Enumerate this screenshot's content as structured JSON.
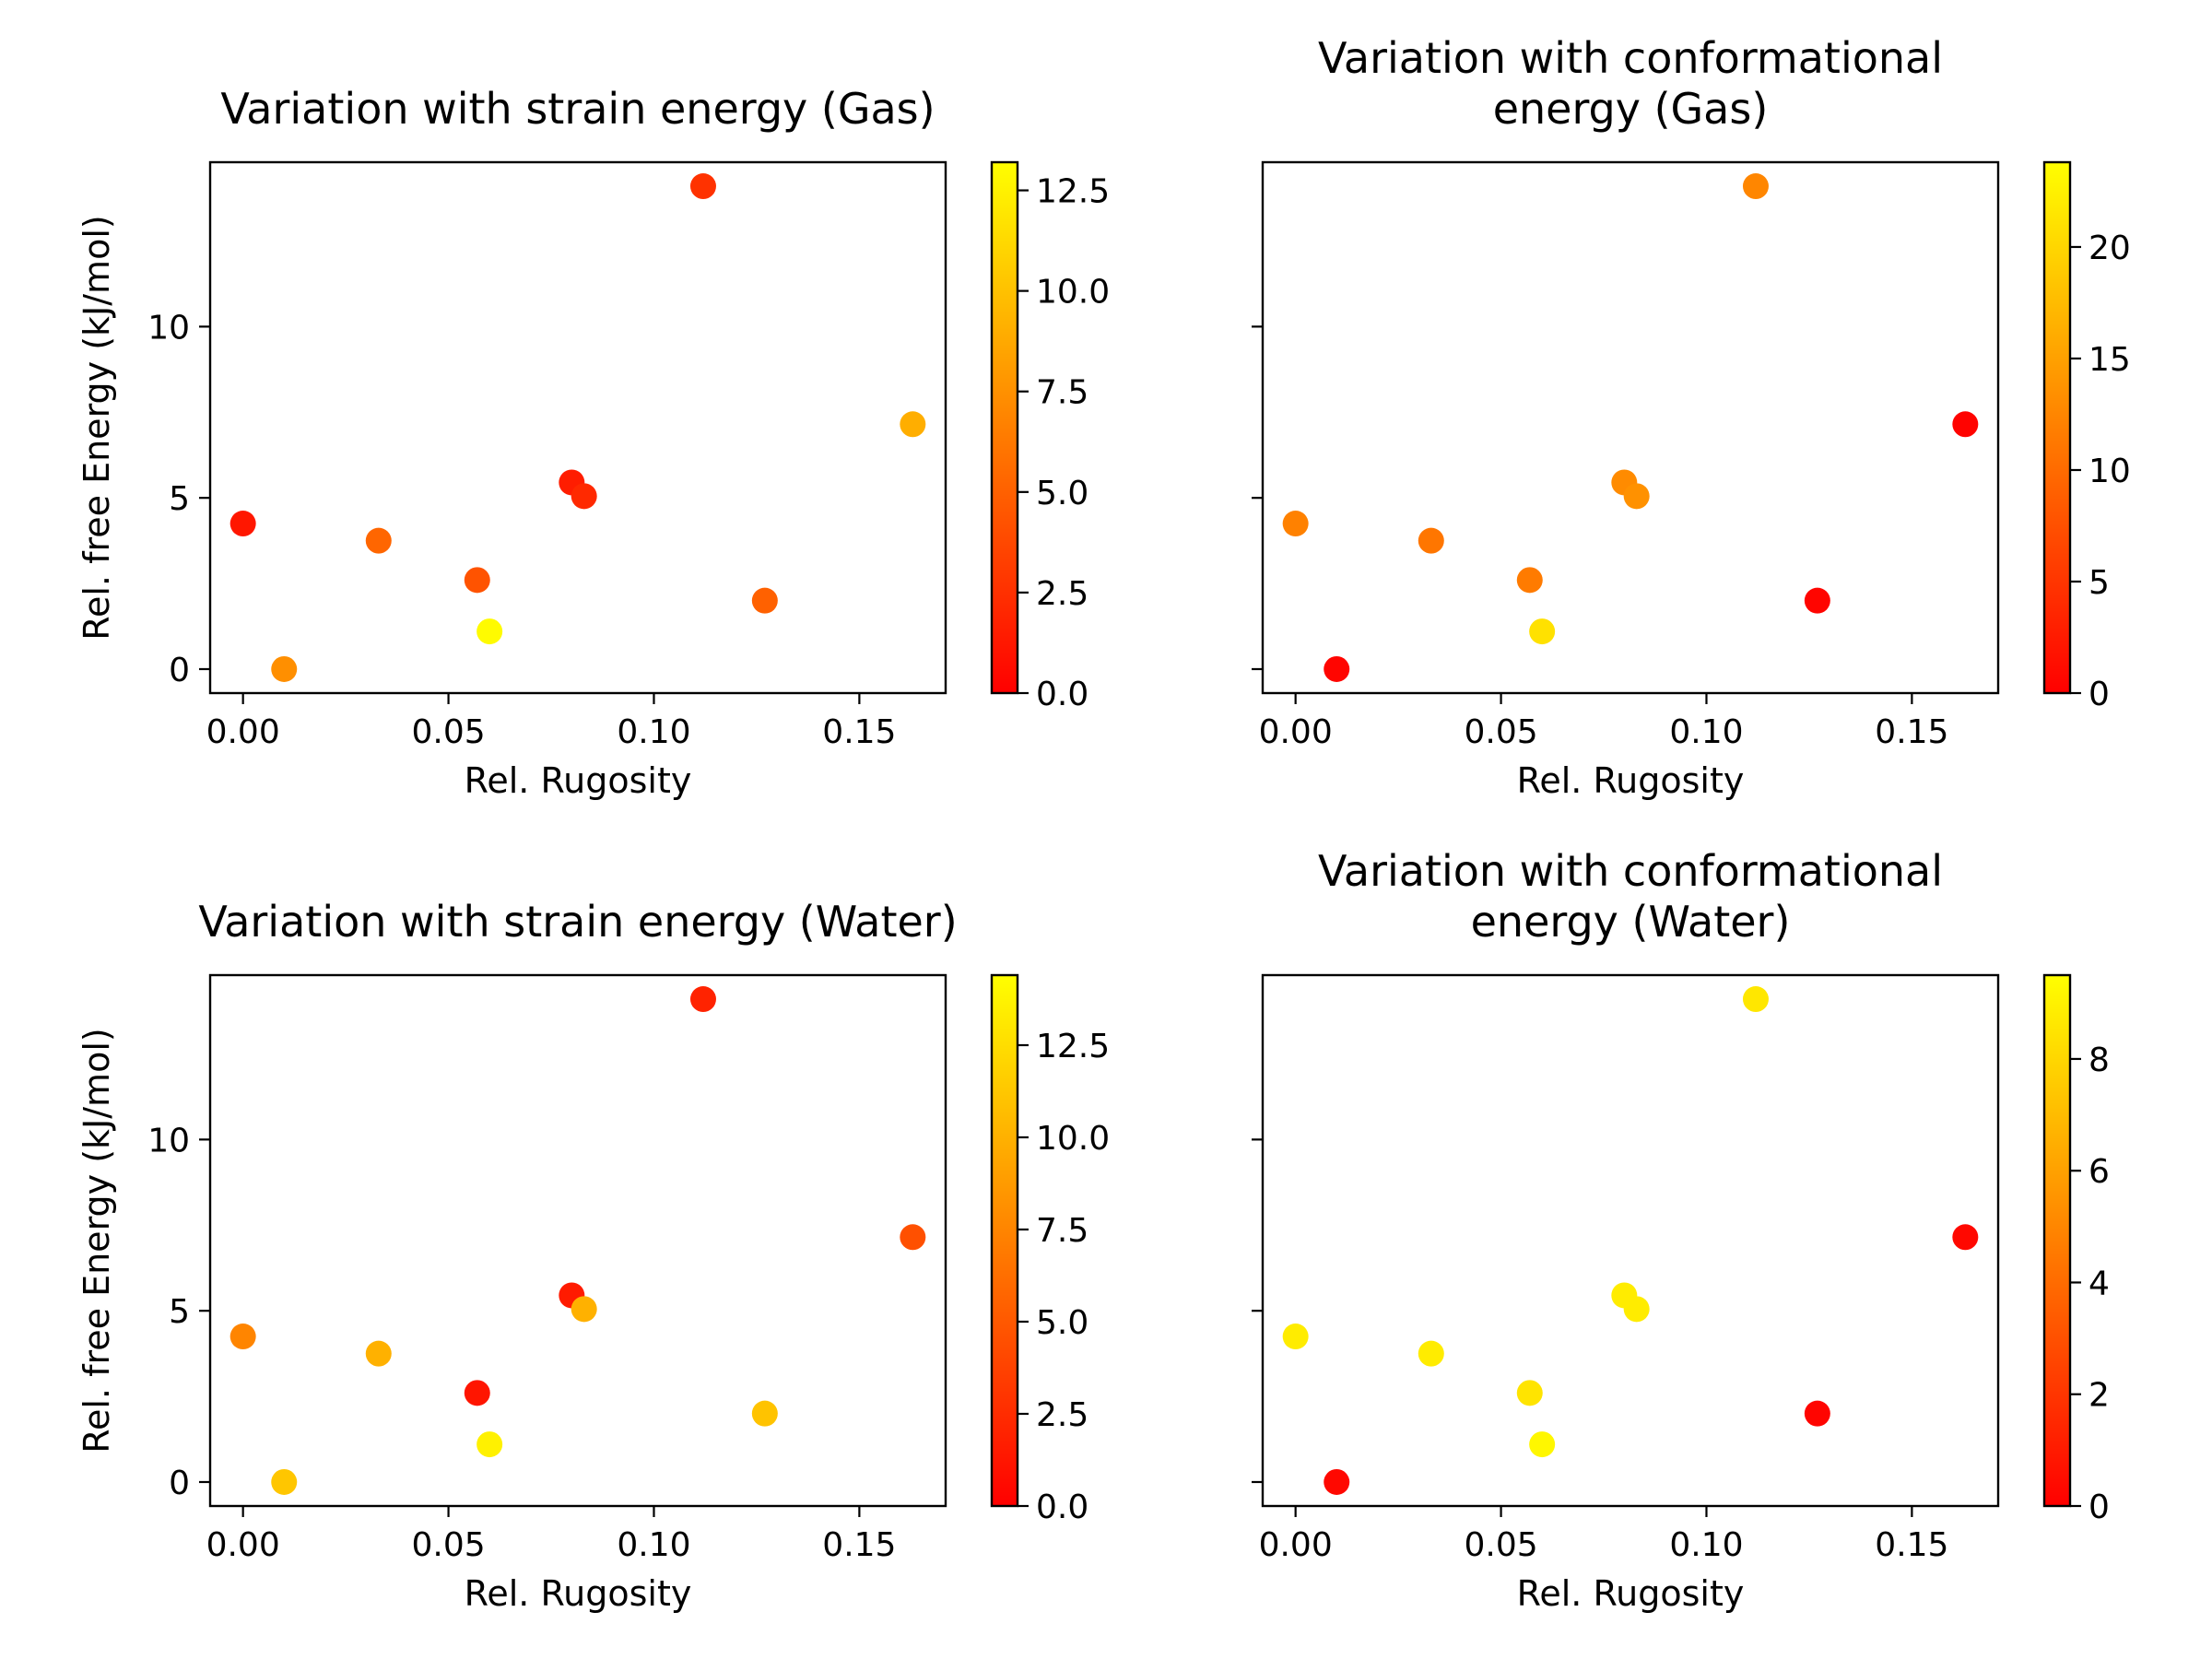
{
  "colors": {
    "colormap": "autumn",
    "low": "#ff0000",
    "high": "#ffff00",
    "frame": "#000000"
  },
  "chart_data": [
    {
      "type": "scatter",
      "title": [
        "Variation with strain energy (Gas)"
      ],
      "xlabel": "Rel. Rugosity",
      "ylabel": "Rel. free Energy (kJ/mol)",
      "x": [
        0.0,
        0.01,
        0.033,
        0.057,
        0.06,
        0.08,
        0.083,
        0.112,
        0.127,
        0.163
      ],
      "y": [
        4.25,
        0.0,
        3.75,
        2.6,
        1.1,
        5.45,
        5.05,
        14.1,
        2.0,
        7.15
      ],
      "c": [
        1.2,
        7.4,
        5.3,
        4.3,
        13.0,
        1.5,
        2.1,
        2.6,
        5.0,
        9.0
      ],
      "xlim": [
        -0.008,
        0.171
      ],
      "ylim": [
        -0.7,
        14.8
      ],
      "xticks": [
        0.0,
        0.05,
        0.1,
        0.15
      ],
      "xtick_labels": [
        "0.00",
        "0.05",
        "0.10",
        "0.15"
      ],
      "yticks": [
        0,
        5,
        10
      ],
      "ytick_labels": [
        "0",
        "5",
        "10"
      ],
      "colorbar": {
        "min": 0.0,
        "max": 13.2,
        "ticks": [
          0,
          2.5,
          5,
          7.5,
          10,
          12.5
        ],
        "tick_labels": [
          "0.0",
          "2.5",
          "5.0",
          "7.5",
          "10.0",
          "12.5"
        ]
      },
      "show_yticklabels": true
    },
    {
      "type": "scatter",
      "title": [
        "Variation with conformational",
        "energy (Gas)"
      ],
      "xlabel": "Rel. Rugosity",
      "ylabel": "",
      "x": [
        0.0,
        0.01,
        0.033,
        0.057,
        0.06,
        0.08,
        0.083,
        0.112,
        0.127,
        0.163
      ],
      "y": [
        4.25,
        0.0,
        3.75,
        2.6,
        1.1,
        5.45,
        5.05,
        14.1,
        2.0,
        7.15
      ],
      "c": [
        12.0,
        0.5,
        11.0,
        11.5,
        21.0,
        13.0,
        13.5,
        12.5,
        0.5,
        0.3
      ],
      "xlim": [
        -0.008,
        0.171
      ],
      "ylim": [
        -0.7,
        14.8
      ],
      "xticks": [
        0.0,
        0.05,
        0.1,
        0.15
      ],
      "xtick_labels": [
        "0.00",
        "0.05",
        "0.10",
        "0.15"
      ],
      "yticks": [
        0,
        5,
        10
      ],
      "ytick_labels": [],
      "colorbar": {
        "min": 0,
        "max": 23.8,
        "ticks": [
          0,
          5,
          10,
          15,
          20
        ],
        "tick_labels": [
          "0",
          "5",
          "10",
          "15",
          "20"
        ]
      },
      "show_yticklabels": false
    },
    {
      "type": "scatter",
      "title": [
        "Variation with strain energy (Water)"
      ],
      "xlabel": "Rel. Rugosity",
      "ylabel": "Rel. free Energy (kJ/mol)",
      "x": [
        0.0,
        0.01,
        0.033,
        0.057,
        0.06,
        0.08,
        0.083,
        0.112,
        0.127,
        0.163
      ],
      "y": [
        4.25,
        0.0,
        3.75,
        2.6,
        1.1,
        5.45,
        5.05,
        14.1,
        2.0,
        7.15
      ],
      "c": [
        7.5,
        11.2,
        10.0,
        1.2,
        13.6,
        1.5,
        10.0,
        2.0,
        11.0,
        4.5
      ],
      "xlim": [
        -0.008,
        0.171
      ],
      "ylim": [
        -0.7,
        14.8
      ],
      "xticks": [
        0.0,
        0.05,
        0.1,
        0.15
      ],
      "xtick_labels": [
        "0.00",
        "0.05",
        "0.10",
        "0.15"
      ],
      "yticks": [
        0,
        5,
        10
      ],
      "ytick_labels": [
        "0",
        "5",
        "10"
      ],
      "colorbar": {
        "min": 0.0,
        "max": 14.4,
        "ticks": [
          0,
          2.5,
          5,
          7.5,
          10,
          12.5
        ],
        "tick_labels": [
          "0.0",
          "2.5",
          "5.0",
          "7.5",
          "10.0",
          "12.5"
        ]
      },
      "show_yticklabels": true
    },
    {
      "type": "scatter",
      "title": [
        "Variation with conformational",
        "energy (Water)"
      ],
      "xlabel": "Rel. Rugosity",
      "ylabel": "",
      "x": [
        0.0,
        0.01,
        0.033,
        0.057,
        0.06,
        0.08,
        0.083,
        0.112,
        0.127,
        0.163
      ],
      "y": [
        4.25,
        0.0,
        3.75,
        2.6,
        1.1,
        5.45,
        5.05,
        14.1,
        2.0,
        7.15
      ],
      "c": [
        8.8,
        0.3,
        8.8,
        8.5,
        9.2,
        8.8,
        8.8,
        8.6,
        0.2,
        0.3
      ],
      "xlim": [
        -0.008,
        0.171
      ],
      "ylim": [
        -0.7,
        14.8
      ],
      "xticks": [
        0.0,
        0.05,
        0.1,
        0.15
      ],
      "xtick_labels": [
        "0.00",
        "0.05",
        "0.10",
        "0.15"
      ],
      "yticks": [
        0,
        5,
        10
      ],
      "ytick_labels": [],
      "colorbar": {
        "min": 0,
        "max": 9.5,
        "ticks": [
          0,
          2,
          4,
          6,
          8
        ],
        "tick_labels": [
          "0",
          "2",
          "4",
          "6",
          "8"
        ]
      },
      "show_yticklabels": false
    }
  ]
}
